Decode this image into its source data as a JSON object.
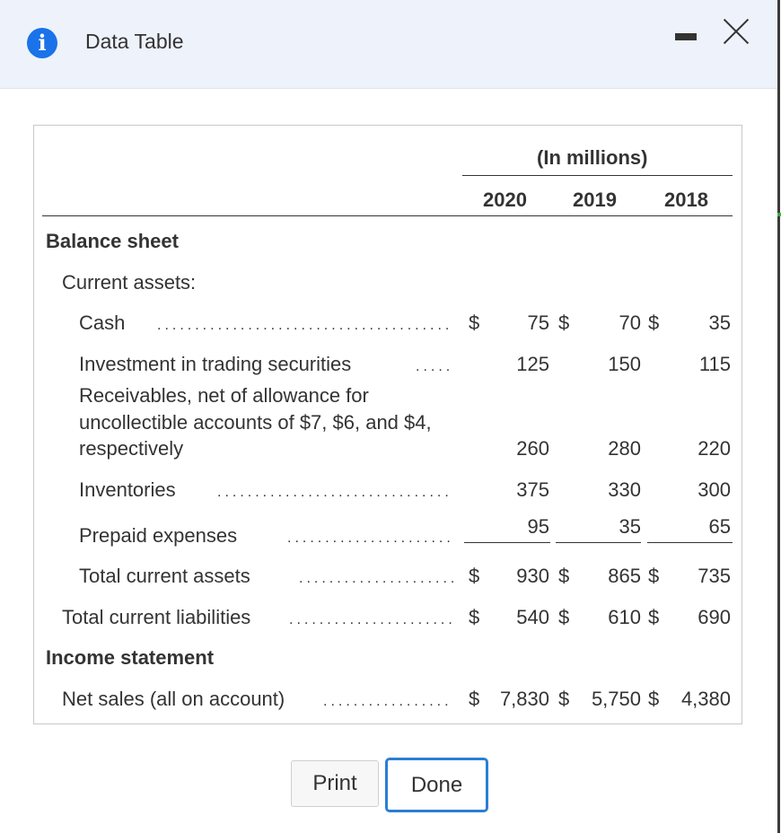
{
  "window": {
    "title": "Data Table",
    "icon": "info-icon"
  },
  "table": {
    "units_label": "(In millions)",
    "years": [
      "2020",
      "2019",
      "2018"
    ],
    "sections": {
      "balance_sheet": "Balance sheet",
      "current_assets": "Current assets:",
      "income_statement": "Income statement"
    },
    "rows": [
      {
        "label": "Cash",
        "v2020": "75",
        "v2019": "70",
        "v2018": "35",
        "dollar": "$"
      },
      {
        "label": "Investment in trading securities",
        "v2020": "125",
        "v2019": "150",
        "v2018": "115"
      },
      {
        "label_lines": [
          "Receivables, net of allowance for",
          "uncollectible accounts of $7, $6, and $4,",
          "respectively"
        ],
        "v2020": "260",
        "v2019": "280",
        "v2018": "220"
      },
      {
        "label": "Inventories",
        "v2020": "375",
        "v2019": "330",
        "v2018": "300"
      },
      {
        "label": "Prepaid expenses",
        "v2020": "95",
        "v2019": "35",
        "v2018": "65"
      },
      {
        "label": "Total current assets",
        "v2020": "930",
        "v2019": "865",
        "v2018": "735",
        "dollar": "$"
      },
      {
        "label": "Total current liabilities",
        "v2020": "540",
        "v2019": "610",
        "v2018": "690",
        "dollar": "$"
      },
      {
        "label": "Net sales (all on account)",
        "v2020": "7,830",
        "v2019": "5,750",
        "v2018": "4,380",
        "dollar": "$"
      }
    ]
  },
  "buttons": {
    "print": "Print",
    "done": "Done"
  }
}
